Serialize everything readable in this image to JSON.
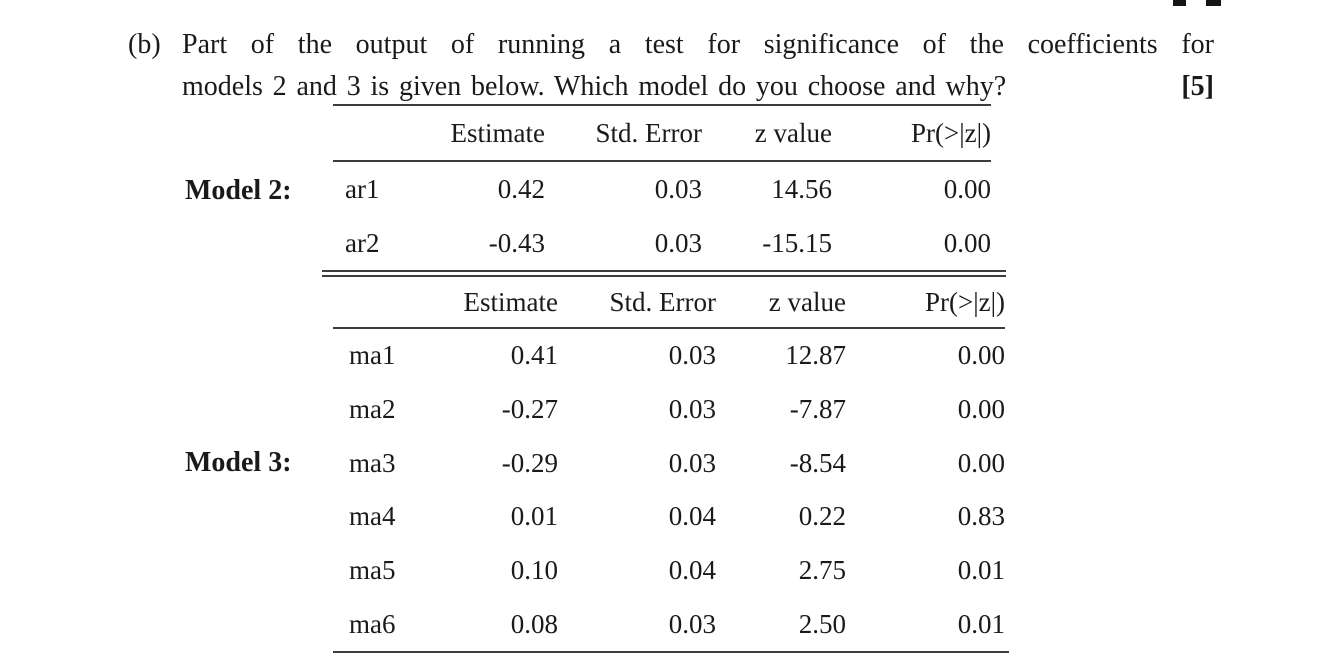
{
  "colors": {
    "background": "#ffffff",
    "text": "#1a1a1a",
    "rule": "#3d3d3d"
  },
  "question": {
    "label": "(b)",
    "line1": "Part of the output of running a test for significance of the coefficients for",
    "line2": "models 2 and 3 is given below. Which model do you choose and why?",
    "marks": "[5]"
  },
  "table": {
    "columns": [
      "Estimate",
      "Std. Error",
      "z value",
      "Pr(>|z|)"
    ],
    "model2": {
      "label": "Model 2:",
      "rows": [
        {
          "term": "ar1",
          "estimate": "0.42",
          "std_error": "0.03",
          "z_value": "14.56",
          "pr": "0.00"
        },
        {
          "term": "ar2",
          "estimate": "-0.43",
          "std_error": "0.03",
          "z_value": "-15.15",
          "pr": "0.00"
        }
      ]
    },
    "model3": {
      "label": "Model 3:",
      "rows": [
        {
          "term": "ma1",
          "estimate": "0.41",
          "std_error": "0.03",
          "z_value": "12.87",
          "pr": "0.00"
        },
        {
          "term": "ma2",
          "estimate": "-0.27",
          "std_error": "0.03",
          "z_value": "-7.87",
          "pr": "0.00"
        },
        {
          "term": "ma3",
          "estimate": "-0.29",
          "std_error": "0.03",
          "z_value": "-8.54",
          "pr": "0.00"
        },
        {
          "term": "ma4",
          "estimate": "0.01",
          "std_error": "0.04",
          "z_value": "0.22",
          "pr": "0.83"
        },
        {
          "term": "ma5",
          "estimate": "0.10",
          "std_error": "0.04",
          "z_value": "2.75",
          "pr": "0.01"
        },
        {
          "term": "ma6",
          "estimate": "0.08",
          "std_error": "0.03",
          "z_value": "2.50",
          "pr": "0.01"
        }
      ]
    }
  }
}
